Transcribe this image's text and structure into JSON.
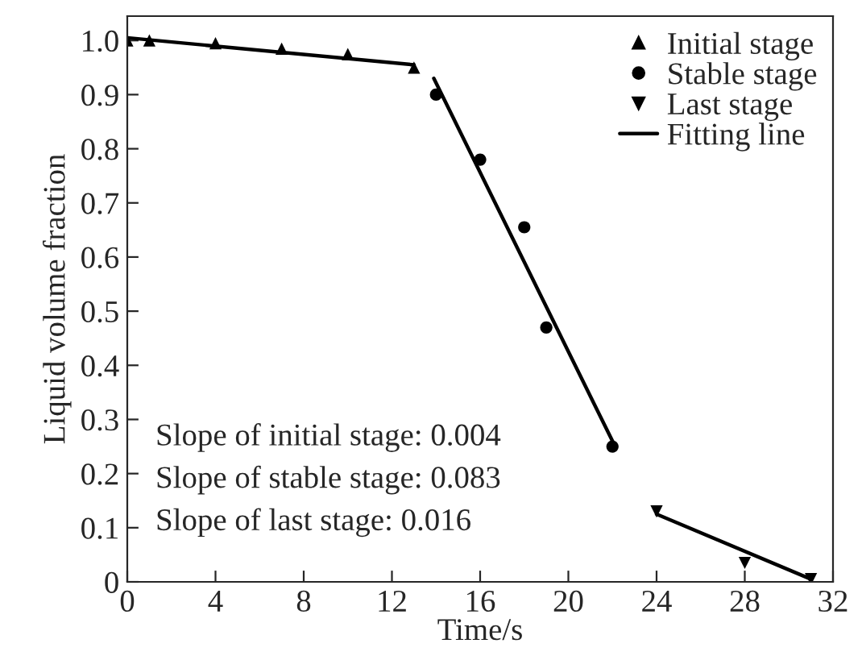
{
  "chart_data": {
    "type": "scatter",
    "xlabel": "Time/s",
    "ylabel": "Liquid volume fraction",
    "xlim": [
      0,
      32
    ],
    "ylim": [
      0,
      1.045
    ],
    "xticks": [
      {
        "value": 0,
        "label": "0"
      },
      4,
      8,
      12,
      16,
      20,
      24,
      28,
      32
    ],
    "yticks": [
      {
        "value": 0,
        "label": "0"
      },
      0.1,
      0.2,
      0.3,
      0.4,
      0.5,
      0.6,
      0.7,
      0.8,
      0.9,
      {
        "value": 1.0,
        "label": "1.0"
      }
    ],
    "grid": false,
    "legend": "top right",
    "series": [
      {
        "name": "Initial stage",
        "marker": "triangle",
        "color": "#000000",
        "x": [
          0,
          1,
          4,
          7,
          10,
          13
        ],
        "values": [
          1.0,
          1.0,
          0.995,
          0.985,
          0.975,
          0.95
        ]
      },
      {
        "name": "Stable stage",
        "marker": "circle",
        "color": "#000000",
        "x": [
          14,
          16,
          18,
          19,
          22
        ],
        "values": [
          0.9,
          0.78,
          0.655,
          0.47,
          0.25
        ]
      },
      {
        "name": "Last stage",
        "marker": "triangle_down",
        "color": "#000000",
        "x": [
          24,
          28,
          31
        ],
        "values": [
          0.13,
          0.035,
          0.005
        ]
      },
      {
        "name": "Fitting line",
        "type": "line",
        "color": "#000000",
        "x": [
          0,
          13
        ],
        "values": [
          1.005,
          0.955
        ]
      },
      {
        "type": "line",
        "color": "#000000",
        "x": [
          13.9,
          22
        ],
        "values": [
          0.93,
          0.26
        ]
      },
      {
        "type": "line",
        "color": "#000000",
        "x": [
          24,
          31
        ],
        "values": [
          0.125,
          0.005
        ]
      }
    ],
    "annotations": [
      "Slope of initial stage: 0.004",
      "Slope of stable stage: 0.083",
      "Slope of last stage: 0.016"
    ]
  }
}
